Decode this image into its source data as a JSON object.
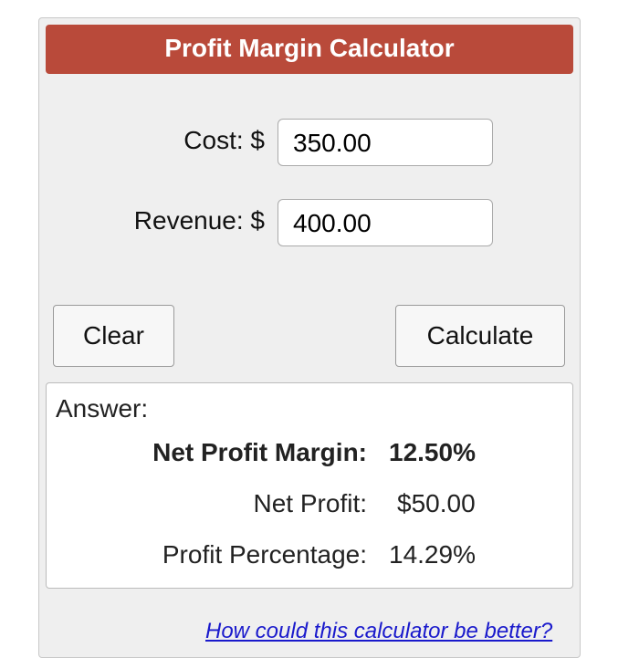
{
  "header": {
    "title": "Profit Margin Calculator"
  },
  "form": {
    "cost_label": "Cost: $",
    "cost_value": "350.00",
    "revenue_label": "Revenue: $",
    "revenue_value": "400.00"
  },
  "buttons": {
    "clear": "Clear",
    "calculate": "Calculate"
  },
  "answer": {
    "heading": "Answer:",
    "rows": [
      [
        "Net Profit Margin:",
        "12.50%"
      ],
      [
        "Net Profit:",
        "$50.00"
      ],
      [
        "Profit Percentage:",
        "14.29%"
      ]
    ]
  },
  "footer": {
    "link": "How could this calculator be better?"
  }
}
